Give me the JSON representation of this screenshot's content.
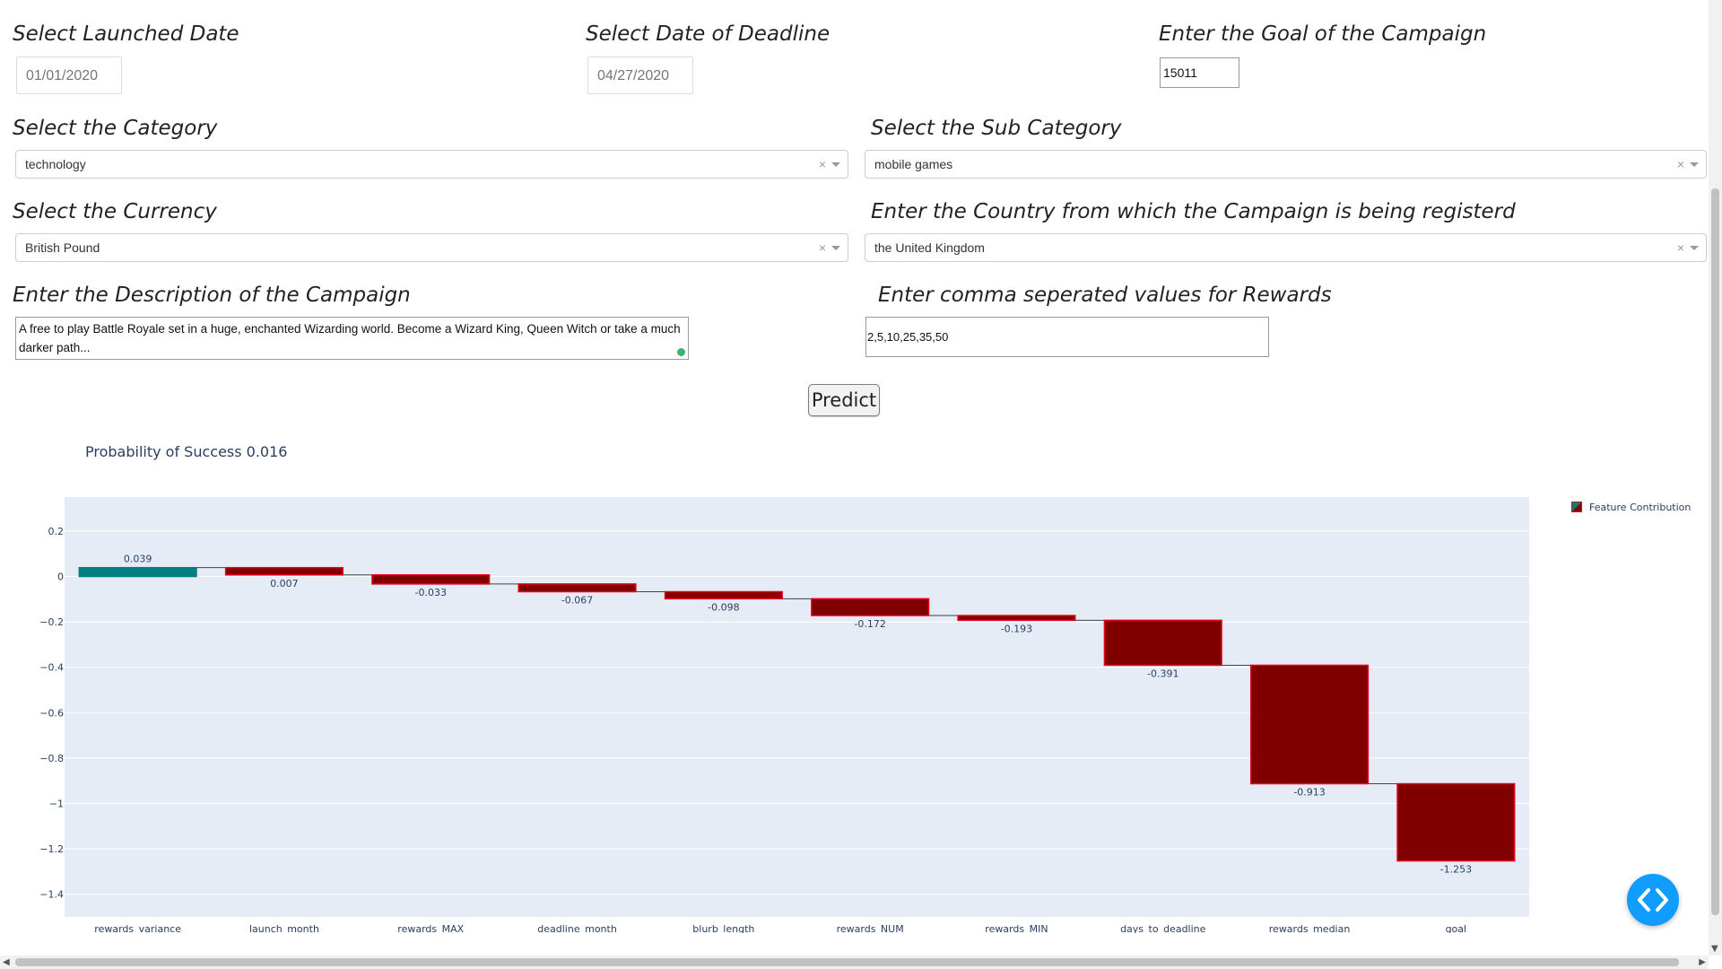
{
  "form": {
    "launched_label": "Select Launched Date",
    "launched_value": "01/01/2020",
    "deadline_label": "Select Date of Deadline",
    "deadline_value": "04/27/2020",
    "goal_label": "Enter the Goal of the Campaign",
    "goal_value": "15011",
    "category_label": "Select the Category",
    "category_value": "technology",
    "subcategory_label": "Select the Sub Category",
    "subcategory_value": "mobile games",
    "currency_label": "Select the Currency",
    "currency_value": "British Pound",
    "country_label": "Enter the Country from which the Campaign is being registerd",
    "country_value": "the United Kingdom",
    "description_label": "Enter the Description of the Campaign",
    "description_value": "A free to play Battle Royale set in a huge, enchanted Wizarding world. Become a Wizard King, Queen Witch or take a much darker path...",
    "rewards_label": "Enter comma seperated values for Rewards",
    "rewards_value": "2,5,10,25,35,50",
    "clear_glyph": "×",
    "predict_label": "Predict"
  },
  "result": {
    "probability_text": "Probability of Success 0.016"
  },
  "colors": {
    "increase": "#008080",
    "decrease": "#800000",
    "decrease_border": "#e8001c",
    "plot_bg": "#e5ecf6"
  },
  "chart_data": {
    "type": "waterfall",
    "categories": [
      "rewards_variance",
      "launch_month",
      "rewards_MAX",
      "deadline_month",
      "blurb_length",
      "rewards_NUM",
      "rewards_MIN",
      "days_to_deadline",
      "rewards_median",
      "goal"
    ],
    "deltas": [
      0.039,
      -0.032,
      -0.04,
      -0.034,
      -0.031,
      -0.074,
      -0.021,
      -0.198,
      -0.522,
      -0.34
    ],
    "cumulative": [
      0.039,
      0.007,
      -0.033,
      -0.067,
      -0.098,
      -0.172,
      -0.193,
      -0.391,
      -0.913,
      -1.253
    ],
    "labels": [
      "0.039",
      "0.007",
      "-0.033",
      "-0.067",
      "-0.098",
      "-0.172",
      "-0.193",
      "-0.391",
      "-0.913",
      "-1.253"
    ],
    "ylim": [
      -1.5,
      0.35
    ],
    "yticks": [
      0.2,
      0,
      -0.2,
      -0.4,
      -0.6,
      -0.8,
      -1,
      -1.2,
      -1.4
    ],
    "ytick_labels": [
      "0.2",
      "0",
      "−0.2",
      "−0.4",
      "−0.6",
      "−0.8",
      "−1",
      "−1.2",
      "−1.4"
    ],
    "legend": "Feature Contribution",
    "legend_position": "top-right",
    "grid": true
  }
}
